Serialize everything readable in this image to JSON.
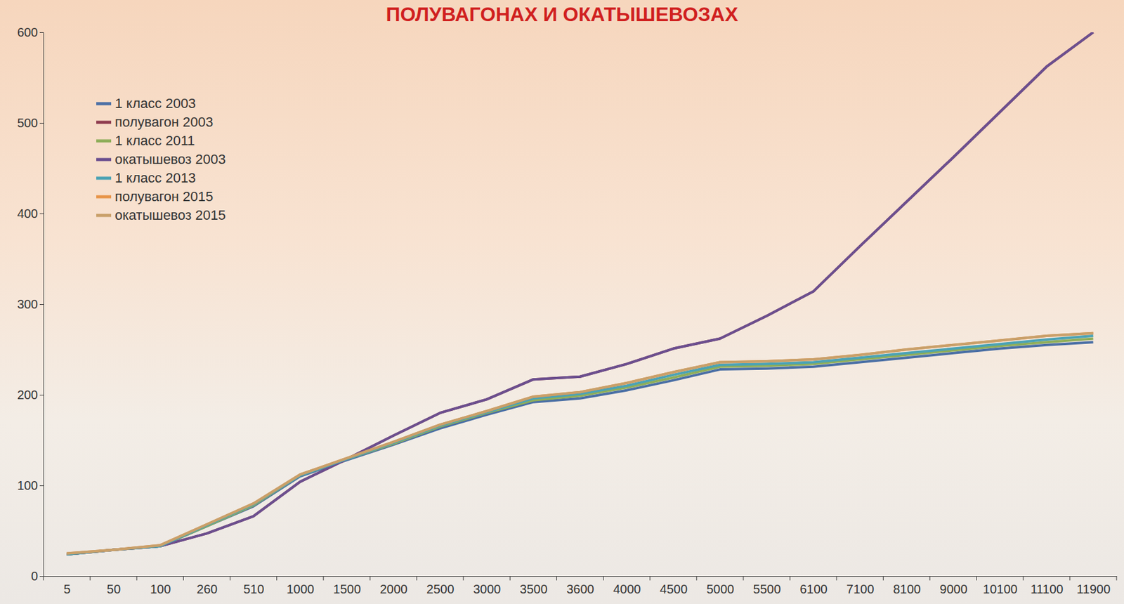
{
  "chart_data": {
    "type": "line",
    "title": "ПОЛУВАГОНАХ И ОКАТЫШЕВОЗАХ",
    "categories": [
      "5",
      "50",
      "100",
      "260",
      "510",
      "1000",
      "1500",
      "2000",
      "2500",
      "3000",
      "3500",
      "3600",
      "4000",
      "4500",
      "5000",
      "5500",
      "6100",
      "7100",
      "8100",
      "9000",
      "10100",
      "11100",
      "11900"
    ],
    "series": [
      {
        "name": "1 класс 2003",
        "color": "#4a6fa5",
        "values": [
          24,
          29,
          33,
          55,
          77,
          110,
          128,
          145,
          163,
          178,
          192,
          196,
          205,
          216,
          228,
          229,
          231,
          236,
          241,
          246,
          251,
          255,
          258
        ]
      },
      {
        "name": "полувагон 2003",
        "color": "#8e3b4e",
        "values": [
          24,
          29,
          33,
          47,
          66,
          104,
          129,
          155,
          180,
          195,
          217,
          220,
          234,
          251,
          262,
          287,
          314,
          364,
          413,
          462,
          512,
          562,
          600
        ]
      },
      {
        "name": "1 класс 2011",
        "color": "#8fae5a",
        "values": [
          24,
          29,
          33,
          55,
          78,
          111,
          129,
          146,
          165,
          180,
          194,
          199,
          208,
          219,
          231,
          232,
          234,
          239,
          244,
          249,
          254,
          258,
          262
        ]
      },
      {
        "name": "окатышевоз 2003",
        "color": "#6b4f8f",
        "values": [
          24,
          29,
          33,
          47,
          66,
          104,
          129,
          155,
          180,
          195,
          217,
          220,
          234,
          251,
          262,
          287,
          314,
          364,
          413,
          462,
          512,
          562,
          600
        ]
      },
      {
        "name": "1 класс 2013",
        "color": "#4ba3b5",
        "values": [
          24,
          29,
          33,
          56,
          79,
          111,
          129,
          147,
          166,
          181,
          196,
          201,
          210,
          222,
          233,
          234,
          236,
          241,
          246,
          251,
          256,
          261,
          265
        ]
      },
      {
        "name": "полувагон 2015",
        "color": "#e8954a",
        "values": [
          25,
          29,
          34,
          57,
          80,
          112,
          130,
          148,
          167,
          182,
          198,
          203,
          213,
          225,
          236,
          237,
          239,
          244,
          250,
          255,
          260,
          265,
          268
        ]
      },
      {
        "name": "окатышевоз 2015",
        "color": "#c9a06a",
        "values": [
          25,
          29,
          34,
          57,
          80,
          112,
          130,
          148,
          167,
          182,
          198,
          203,
          213,
          225,
          236,
          237,
          239,
          244,
          250,
          255,
          260,
          265,
          268
        ]
      }
    ],
    "ylim": [
      0,
      600
    ],
    "yticks": [
      0,
      100,
      200,
      300,
      400,
      500,
      600
    ],
    "grid": false,
    "legend": "upper left"
  }
}
